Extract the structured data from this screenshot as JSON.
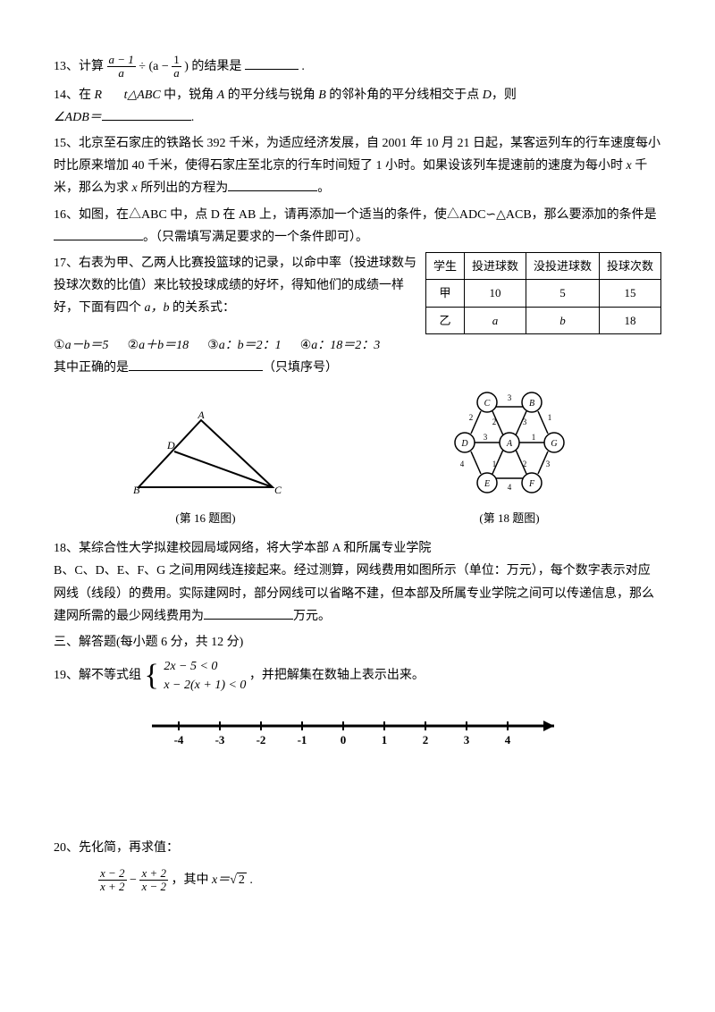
{
  "q13": {
    "label": "13、计算",
    "frac1_num": "a − 1",
    "frac1_den": "a",
    "mid": " ÷ (a − ",
    "frac2_num": "1",
    "frac2_den": "a",
    "tail": ") 的结果是",
    "period": "."
  },
  "q14": {
    "text1": "14、在 ",
    "R": "R",
    "text2": "t△",
    "ABC": "ABC",
    "text3": " 中，锐角 ",
    "A": "A",
    "text4": " 的平分线与锐角 ",
    "B": "B",
    "text5": " 的邻补角的平分线相交于点 ",
    "D": "D",
    "text6": "，则",
    "angle": "∠ADB＝",
    "period": "."
  },
  "q15": {
    "text1": "15、北京至石家庄的铁路长 392 千米，为适应经济发展，自 2001 年 10 月 21 日起，某客运列车的行车速度每小时比原来增加 40 千米，使得石家庄至北京的行车时间短了 1 小时。如果设该列车提速前的速度为每小时 ",
    "x1": "x",
    "text2": " 千米，那么为求 ",
    "x2": "x",
    "text3": " 所列出的方程为",
    "period": "。"
  },
  "q16": {
    "text": "16、如图，在△ABC 中，点 D 在 AB 上，请再添加一个适当的条件，使△ADC∽△ACB，那么要添加的条件是",
    "tail": "。（只需填写满足要求的一个条件即可）。"
  },
  "q17": {
    "text1": "17、右表为甲、乙两人比赛投篮球的记录，以命中率（投进球数与投球次数的比值）来比较投球成绩的好坏，得知他们的成绩一样好，下面有四个 ",
    "ab": "a，b",
    "text2": " 的关系式：",
    "opt1_pre": "①",
    "opt1": "a－b＝5",
    "opt2_pre": "②",
    "opt2": "a＋b＝18",
    "opt3_pre": "③",
    "opt3": "a：b＝2：1",
    "opt4_pre": "④",
    "opt4": "a：18＝2：3",
    "text3": "其中正确的是",
    "tail": "（只填序号）",
    "table": {
      "h1": "学生",
      "h2": "投进球数",
      "h3": "没投进球数",
      "h4": "投球次数",
      "r1c1": "甲",
      "r1c2": "10",
      "r1c3": "5",
      "r1c4": "15",
      "r2c1": "乙",
      "r2c2": "a",
      "r2c3": "b",
      "r2c4": "18"
    }
  },
  "fig16_caption": "(第 16 题图)",
  "fig18_caption": "(第 18 题图)",
  "fig16": {
    "A": "A",
    "B": "B",
    "C": "C",
    "D": "D"
  },
  "fig18": {
    "A": "A",
    "B": "B",
    "C": "C",
    "D": "D",
    "E": "E",
    "F": "F",
    "G": "G",
    "n1": "1",
    "n2": "2",
    "n3": "3",
    "n4": "4"
  },
  "q18": {
    "text1": "18、某综合性大学拟建校园局域网络，将大学本部 A 和所属专业学院",
    "text2": "B、C、D、E、F、G 之间用网线连接起来。经过测算，网线费用如图所示（单位：万元），每个数字表示对应网线（线段）的费用。实际建网时，部分网线可以省略不建，但本部及所属专业学院之间可以传递信息，那么建网所需的最少网线费用为",
    "unit": "万元。"
  },
  "section3": "三、解答题(每小题 6 分，共 12 分)",
  "q19": {
    "label": "19、解不等式组",
    "line1": "2x − 5 < 0",
    "line2": "x − 2(x + 1) < 0",
    "tail": "，并把解集在数轴上表示出来。"
  },
  "numberline": {
    "ticks": [
      "-4",
      "-3",
      "-2",
      "-1",
      "0",
      "1",
      "2",
      "3",
      "4"
    ]
  },
  "q20": {
    "label": "20、先化简，再求值：",
    "f1_num": "x − 2",
    "f1_den": "x + 2",
    "minus": " − ",
    "f2_num": "x + 2",
    "f2_den": "x − 2",
    "mid": "，其中 ",
    "xeq": "x＝",
    "rad": "2",
    "period": " ."
  }
}
